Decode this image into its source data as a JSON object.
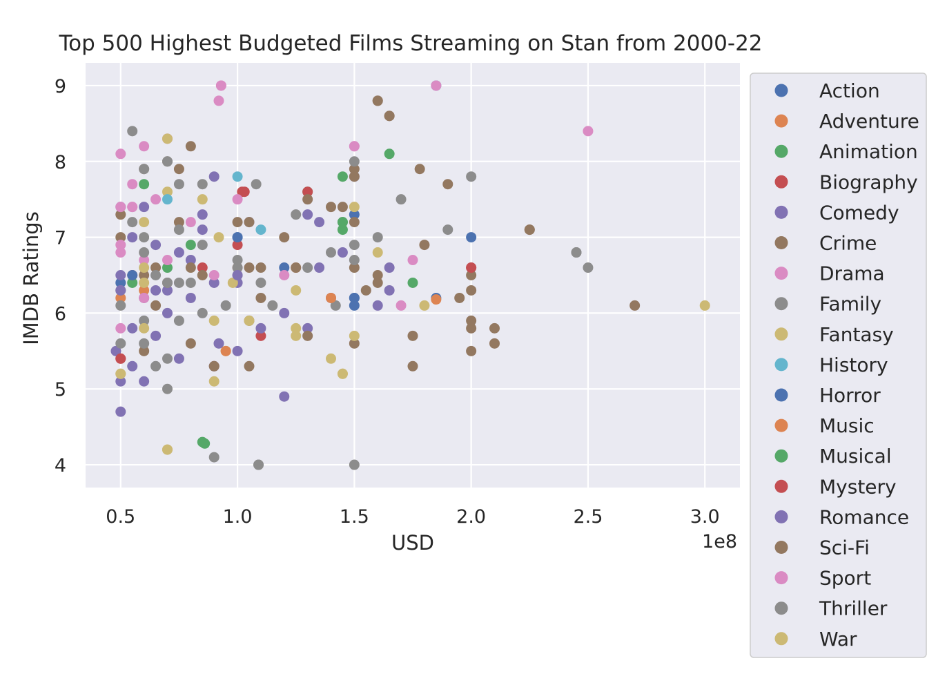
{
  "chart_data": {
    "type": "scatter",
    "title": "Top 500 Highest Budgeted Films Streaming on Stan from 2000-22",
    "xlabel": "USD",
    "ylabel": "IMDB Ratings",
    "x_offset_label": "1e8",
    "xlim": [
      0.35,
      3.15
    ],
    "ylim": [
      3.7,
      9.3
    ],
    "x_ticks": [
      0.5,
      1.0,
      1.5,
      2.0,
      2.5,
      3.0
    ],
    "x_tick_labels": [
      "0.5",
      "1.0",
      "1.5",
      "2.0",
      "2.5",
      "3.0"
    ],
    "y_ticks": [
      4,
      5,
      6,
      7,
      8,
      9
    ],
    "y_tick_labels": [
      "4",
      "5",
      "6",
      "7",
      "8",
      "9"
    ],
    "grid": true,
    "legend_position": "outside-right",
    "background": "#eaeaf2",
    "series": [
      {
        "name": "Action",
        "color": "#4c72b0",
        "points": [
          [
            1.85,
            9.0
          ],
          [
            1.0,
            7.0
          ],
          [
            2.0,
            7.0
          ],
          [
            1.5,
            6.2
          ],
          [
            1.2,
            6.6
          ],
          [
            1.85,
            6.2
          ],
          [
            0.5,
            6.4
          ],
          [
            1.5,
            7.3
          ],
          [
            1.5,
            6.1
          ]
        ]
      },
      {
        "name": "Adventure",
        "color": "#dd8452",
        "points": [
          [
            0.5,
            6.2
          ],
          [
            1.85,
            6.18
          ],
          [
            0.9,
            5.3
          ],
          [
            1.0,
            6.6
          ],
          [
            1.25,
            6.6
          ],
          [
            0.6,
            6.3
          ]
        ]
      },
      {
        "name": "Animation",
        "color": "#55a868",
        "points": [
          [
            0.6,
            7.7
          ],
          [
            0.8,
            6.9
          ],
          [
            1.45,
            7.8
          ],
          [
            1.65,
            8.1
          ],
          [
            1.45,
            7.2
          ],
          [
            1.75,
            6.4
          ],
          [
            0.85,
            4.3
          ],
          [
            0.55,
            6.4
          ],
          [
            1.3,
            7.6
          ],
          [
            0.7,
            6.6
          ],
          [
            1.45,
            7.1
          ]
        ]
      },
      {
        "name": "Biography",
        "color": "#c44e52",
        "points": [
          [
            1.02,
            7.6
          ],
          [
            1.3,
            7.6
          ],
          [
            0.85,
            6.6
          ],
          [
            2.0,
            6.6
          ],
          [
            1.1,
            5.7
          ],
          [
            0.5,
            5.4
          ],
          [
            1.0,
            6.9
          ],
          [
            0.55,
            6.5
          ]
        ]
      },
      {
        "name": "Comedy",
        "color": "#8172b3",
        "points": [
          [
            0.5,
            7.4
          ],
          [
            0.6,
            7.4
          ],
          [
            0.55,
            7.0
          ],
          [
            0.65,
            6.9
          ],
          [
            0.75,
            6.8
          ],
          [
            0.5,
            6.5
          ],
          [
            0.6,
            6.2
          ],
          [
            0.7,
            6.0
          ],
          [
            0.55,
            5.8
          ],
          [
            0.65,
            5.7
          ],
          [
            0.75,
            5.4
          ],
          [
            0.5,
            5.1
          ],
          [
            0.6,
            5.1
          ],
          [
            0.5,
            4.7
          ],
          [
            0.85,
            7.3
          ],
          [
            0.9,
            7.8
          ],
          [
            0.85,
            7.1
          ],
          [
            0.8,
            6.7
          ],
          [
            0.9,
            6.4
          ],
          [
            1.0,
            6.4
          ],
          [
            1.05,
            7.2
          ],
          [
            1.2,
            6.0
          ],
          [
            1.3,
            7.3
          ],
          [
            1.35,
            7.2
          ],
          [
            1.35,
            6.6
          ],
          [
            1.4,
            6.2
          ],
          [
            1.5,
            7.8
          ],
          [
            1.45,
            6.8
          ],
          [
            1.6,
            6.1
          ],
          [
            1.65,
            6.6
          ],
          [
            1.65,
            6.3
          ],
          [
            1.2,
            4.9
          ],
          [
            1.3,
            5.8
          ],
          [
            1.1,
            5.8
          ],
          [
            0.92,
            5.6
          ],
          [
            1.0,
            5.5
          ],
          [
            0.9,
            5.3
          ],
          [
            0.48,
            5.5
          ],
          [
            0.7,
            6.3
          ],
          [
            0.8,
            6.2
          ]
        ]
      },
      {
        "name": "Crime",
        "color": "#937860",
        "points": [
          [
            0.5,
            7.3
          ],
          [
            0.6,
            7.9
          ],
          [
            0.7,
            8.0
          ],
          [
            0.8,
            8.2
          ],
          [
            0.75,
            7.9
          ],
          [
            0.75,
            7.2
          ],
          [
            0.65,
            6.6
          ],
          [
            0.8,
            6.6
          ],
          [
            0.6,
            6.5
          ],
          [
            0.7,
            6.4
          ],
          [
            0.6,
            5.5
          ],
          [
            0.8,
            5.6
          ],
          [
            0.9,
            5.3
          ],
          [
            1.0,
            7.2
          ],
          [
            1.05,
            7.2
          ],
          [
            1.05,
            6.6
          ],
          [
            1.1,
            6.6
          ],
          [
            1.1,
            6.2
          ],
          [
            1.05,
            5.9
          ],
          [
            1.05,
            5.3
          ],
          [
            1.2,
            7.0
          ],
          [
            1.3,
            7.5
          ],
          [
            1.4,
            7.4
          ],
          [
            1.5,
            7.9
          ],
          [
            1.5,
            7.2
          ],
          [
            1.5,
            6.6
          ],
          [
            1.5,
            5.6
          ],
          [
            1.6,
            8.8
          ],
          [
            1.65,
            8.6
          ],
          [
            1.6,
            6.5
          ],
          [
            1.6,
            6.4
          ],
          [
            1.55,
            6.3
          ],
          [
            1.75,
            5.7
          ],
          [
            1.75,
            5.3
          ],
          [
            1.78,
            7.9
          ],
          [
            1.8,
            6.9
          ],
          [
            1.9,
            7.7
          ],
          [
            1.95,
            6.2
          ],
          [
            2.0,
            6.5
          ],
          [
            2.0,
            6.3
          ],
          [
            2.0,
            5.9
          ],
          [
            2.0,
            5.8
          ],
          [
            2.0,
            5.5
          ],
          [
            2.1,
            5.8
          ],
          [
            2.1,
            5.6
          ],
          [
            2.25,
            7.1
          ],
          [
            2.7,
            6.1
          ],
          [
            1.3,
            5.7
          ],
          [
            1.25,
            6.6
          ],
          [
            0.5,
            7.0
          ],
          [
            0.65,
            6.1
          ],
          [
            0.85,
            6.5
          ],
          [
            1.45,
            7.4
          ]
        ]
      },
      {
        "name": "Drama",
        "color": "#da8bc3",
        "points": [
          [
            0.93,
            9.0
          ],
          [
            0.92,
            8.8
          ],
          [
            1.85,
            9.0
          ],
          [
            2.5,
            8.4
          ],
          [
            0.5,
            8.1
          ],
          [
            0.6,
            8.2
          ],
          [
            0.7,
            8.3
          ],
          [
            0.55,
            7.7
          ],
          [
            0.65,
            7.5
          ],
          [
            0.5,
            7.4
          ],
          [
            0.8,
            7.2
          ],
          [
            0.5,
            6.9
          ],
          [
            0.6,
            6.7
          ],
          [
            0.5,
            6.8
          ],
          [
            0.7,
            6.7
          ],
          [
            0.5,
            5.8
          ],
          [
            0.6,
            6.2
          ],
          [
            1.0,
            7.5
          ],
          [
            1.2,
            6.5
          ],
          [
            1.5,
            8.2
          ],
          [
            1.7,
            6.1
          ],
          [
            1.75,
            6.7
          ],
          [
            0.9,
            6.5
          ],
          [
            0.55,
            7.4
          ]
        ]
      },
      {
        "name": "Family",
        "color": "#8c8c8c",
        "points": [
          [
            0.55,
            8.4
          ],
          [
            0.7,
            8.0
          ],
          [
            0.6,
            7.9
          ],
          [
            0.75,
            7.7
          ],
          [
            0.85,
            7.7
          ],
          [
            0.55,
            7.2
          ],
          [
            0.6,
            7.0
          ],
          [
            0.75,
            7.1
          ],
          [
            0.85,
            6.9
          ],
          [
            0.6,
            6.8
          ],
          [
            0.65,
            6.5
          ],
          [
            0.75,
            6.4
          ],
          [
            0.5,
            6.1
          ],
          [
            0.6,
            5.9
          ],
          [
            0.75,
            5.9
          ],
          [
            0.85,
            6.0
          ],
          [
            0.5,
            5.6
          ],
          [
            0.6,
            5.6
          ],
          [
            0.7,
            5.4
          ],
          [
            0.65,
            5.3
          ],
          [
            0.7,
            5.0
          ],
          [
            0.9,
            4.1
          ],
          [
            1.09,
            4.0
          ],
          [
            1.5,
            4.0
          ],
          [
            1.0,
            6.7
          ],
          [
            1.0,
            6.5
          ],
          [
            1.1,
            6.4
          ],
          [
            1.08,
            7.7
          ],
          [
            1.15,
            6.1
          ],
          [
            1.25,
            7.3
          ],
          [
            1.3,
            6.6
          ],
          [
            1.4,
            6.8
          ],
          [
            1.42,
            6.1
          ],
          [
            1.5,
            8.0
          ],
          [
            1.5,
            6.9
          ],
          [
            1.6,
            7.0
          ],
          [
            1.7,
            7.5
          ],
          [
            1.9,
            7.1
          ],
          [
            2.0,
            7.8
          ],
          [
            2.45,
            6.8
          ],
          [
            2.5,
            6.6
          ],
          [
            0.95,
            6.1
          ],
          [
            0.8,
            6.4
          ],
          [
            1.0,
            6.6
          ],
          [
            0.5,
            6.3
          ]
        ]
      },
      {
        "name": "Fantasy",
        "color": "#ccb974",
        "points": [
          [
            0.7,
            8.3
          ],
          [
            0.7,
            7.6
          ],
          [
            0.85,
            7.5
          ],
          [
            0.6,
            7.2
          ],
          [
            0.92,
            7.0
          ],
          [
            0.6,
            6.4
          ],
          [
            0.5,
            5.2
          ],
          [
            0.6,
            5.8
          ],
          [
            0.7,
            4.2
          ],
          [
            0.9,
            5.9
          ],
          [
            0.9,
            5.1
          ],
          [
            0.95,
            5.5
          ],
          [
            1.05,
            5.9
          ],
          [
            1.25,
            6.3
          ],
          [
            1.25,
            5.8
          ],
          [
            1.25,
            5.7
          ],
          [
            1.4,
            5.4
          ],
          [
            1.45,
            5.2
          ],
          [
            1.5,
            7.4
          ],
          [
            1.5,
            5.7
          ],
          [
            1.6,
            6.8
          ],
          [
            1.8,
            6.1
          ],
          [
            3.0,
            6.1
          ],
          [
            0.98,
            6.4
          ],
          [
            0.6,
            6.6
          ]
        ]
      },
      {
        "name": "History",
        "color": "#64b5cd",
        "points": [
          [
            1.0,
            7.8
          ],
          [
            0.7,
            7.5
          ],
          [
            1.1,
            7.1
          ]
        ]
      },
      {
        "name": "Horror",
        "color": "#4c72b0",
        "points": [
          [
            1.5,
            6.2
          ],
          [
            1.0,
            7.0
          ],
          [
            0.55,
            6.5
          ]
        ]
      },
      {
        "name": "Music",
        "color": "#dd8452",
        "points": [
          [
            1.4,
            6.2
          ],
          [
            0.95,
            5.5
          ]
        ]
      },
      {
        "name": "Musical",
        "color": "#55a868",
        "points": [
          [
            0.86,
            4.28
          ],
          [
            1.45,
            7.2
          ]
        ]
      },
      {
        "name": "Mystery",
        "color": "#c44e52",
        "points": [
          [
            1.03,
            7.6
          ],
          [
            2.0,
            6.6
          ],
          [
            0.5,
            5.4
          ]
        ]
      },
      {
        "name": "Romance",
        "color": "#8172b3",
        "points": [
          [
            0.55,
            5.3
          ],
          [
            0.5,
            6.3
          ],
          [
            0.65,
            6.3
          ],
          [
            1.0,
            6.5
          ]
        ]
      },
      {
        "name": "Sci-Fi",
        "color": "#937860",
        "points": [
          [
            1.6,
            8.8
          ],
          [
            1.65,
            8.6
          ],
          [
            1.5,
            7.8
          ],
          [
            2.25,
            7.1
          ]
        ]
      },
      {
        "name": "Sport",
        "color": "#da8bc3",
        "points": [
          [
            0.93,
            9.0
          ],
          [
            1.5,
            8.2
          ],
          [
            0.55,
            7.4
          ]
        ]
      },
      {
        "name": "Thriller",
        "color": "#8c8c8c",
        "points": [
          [
            2.45,
            6.8
          ],
          [
            1.09,
            4.0
          ],
          [
            1.5,
            6.7
          ],
          [
            0.7,
            6.4
          ]
        ]
      },
      {
        "name": "War",
        "color": "#ccb974",
        "points": [
          [
            0.7,
            4.2
          ],
          [
            1.45,
            5.2
          ],
          [
            0.5,
            5.2
          ]
        ]
      }
    ]
  }
}
